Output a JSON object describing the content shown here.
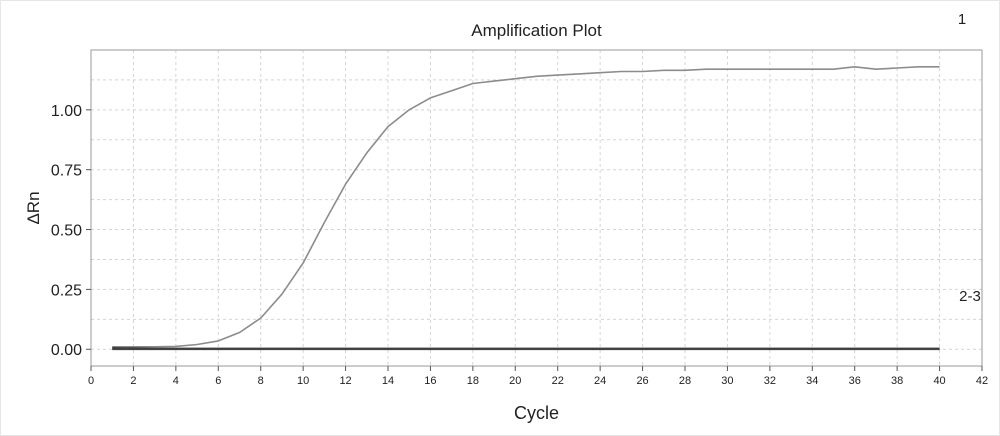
{
  "annotations": {
    "curve_label": "1",
    "baseline_label": "2-3"
  },
  "chart_data": {
    "type": "line",
    "title": "Amplification Plot",
    "xlabel": "Cycle",
    "ylabel": "ΔRn",
    "xlim": [
      0,
      42
    ],
    "ylim": [
      -0.07,
      1.25
    ],
    "xticks": [
      0,
      2,
      4,
      6,
      8,
      10,
      12,
      14,
      16,
      18,
      20,
      22,
      24,
      26,
      28,
      30,
      32,
      34,
      36,
      38,
      40,
      42
    ],
    "yticks": [
      0.0,
      0.25,
      0.5,
      0.75,
      1.0
    ],
    "ytick_labels": [
      "0.00",
      "0.25",
      "0.50",
      "0.75",
      "1.00"
    ],
    "grid": true,
    "x": [
      1,
      2,
      3,
      4,
      5,
      6,
      7,
      8,
      9,
      10,
      11,
      12,
      13,
      14,
      15,
      16,
      17,
      18,
      19,
      20,
      21,
      22,
      23,
      24,
      25,
      26,
      27,
      28,
      29,
      30,
      31,
      32,
      33,
      34,
      35,
      36,
      37,
      38,
      39,
      40
    ],
    "series": [
      {
        "values": [
          0.01,
          0.01,
          0.01,
          0.012,
          0.02,
          0.035,
          0.07,
          0.13,
          0.23,
          0.36,
          0.53,
          0.69,
          0.82,
          0.93,
          1.0,
          1.05,
          1.08,
          1.11,
          1.12,
          1.13,
          1.14,
          1.145,
          1.15,
          1.155,
          1.16,
          1.16,
          1.165,
          1.165,
          1.17,
          1.17,
          1.17,
          1.17,
          1.17,
          1.17,
          1.17,
          1.18,
          1.17,
          1.175,
          1.18,
          1.18
        ],
        "color": "#8c8c8c"
      },
      {
        "values": [
          0.005,
          0.004,
          0.003,
          0.003,
          0.003,
          0.003,
          0.003,
          0.003,
          0.003,
          0.003,
          0.003,
          0.003,
          0.003,
          0.003,
          0.003,
          0.003,
          0.003,
          0.003,
          0.003,
          0.003,
          0.003,
          0.003,
          0.003,
          0.003,
          0.003,
          0.003,
          0.003,
          0.003,
          0.003,
          0.003,
          0.003,
          0.003,
          0.003,
          0.003,
          0.003,
          0.003,
          0.003,
          0.003,
          0.003,
          0.003
        ],
        "color": "#333333"
      },
      {
        "values": [
          0.0,
          0.0,
          0.0,
          0.0,
          0.0,
          0.0,
          0.0,
          0.0,
          0.0,
          0.0,
          0.0,
          0.0,
          0.0,
          0.0,
          0.0,
          0.0,
          0.0,
          0.0,
          0.0,
          0.0,
          0.0,
          0.0,
          0.0,
          0.0,
          0.0,
          0.0,
          0.0,
          0.0,
          0.0,
          0.0,
          0.0,
          0.0,
          0.0,
          0.0,
          0.0,
          0.0,
          0.0,
          0.0,
          0.0,
          0.0
        ],
        "color": "#444444"
      }
    ]
  }
}
